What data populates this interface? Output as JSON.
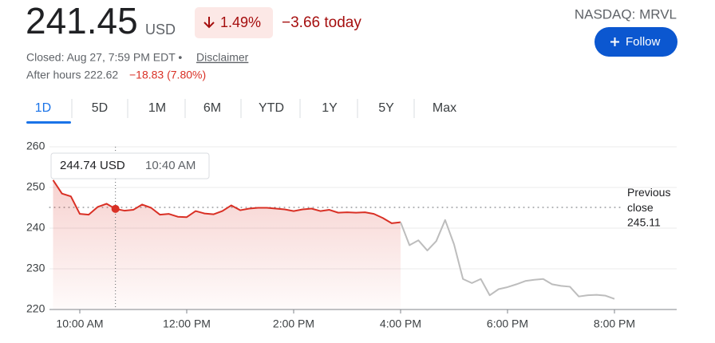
{
  "header": {
    "price": "241.45",
    "currency": "USD",
    "change_pct": "1.49%",
    "change_today": "−3.66 today",
    "exchange": "NASDAQ: MRVL",
    "follow": "Follow",
    "closed": "Closed: Aug 27, 7:59 PM EDT •",
    "disclaimer": "Disclaimer",
    "after_hours": "After hours 222.62",
    "after_hours_change": "−18.83 (7.80%)"
  },
  "tabs": [
    "1D",
    "5D",
    "1M",
    "6M",
    "YTD",
    "1Y",
    "5Y",
    "Max"
  ],
  "chart_data": {
    "type": "line",
    "x": [
      "9:30 AM",
      "9:40 AM",
      "9:50 AM",
      "10:00 AM",
      "10:10 AM",
      "10:20 AM",
      "10:30 AM",
      "10:40 AM",
      "10:50 AM",
      "11:00 AM",
      "11:10 AM",
      "11:20 AM",
      "11:30 AM",
      "11:40 AM",
      "11:50 AM",
      "12:00 PM",
      "12:10 PM",
      "12:20 PM",
      "12:30 PM",
      "12:40 PM",
      "12:50 PM",
      "1:00 PM",
      "1:10 PM",
      "1:20 PM",
      "1:30 PM",
      "1:40 PM",
      "1:50 PM",
      "2:00 PM",
      "2:10 PM",
      "2:20 PM",
      "2:30 PM",
      "2:40 PM",
      "2:50 PM",
      "3:00 PM",
      "3:10 PM",
      "3:20 PM",
      "3:30 PM",
      "3:40 PM",
      "3:50 PM",
      "4:00 PM",
      "4:10 PM",
      "4:20 PM",
      "4:30 PM",
      "4:40 PM",
      "4:50 PM",
      "5:00 PM",
      "5:10 PM",
      "5:20 PM",
      "5:30 PM",
      "5:40 PM",
      "5:50 PM",
      "6:00 PM",
      "6:10 PM",
      "6:20 PM",
      "6:30 PM",
      "6:40 PM",
      "6:50 PM",
      "7:00 PM",
      "7:10 PM",
      "7:20 PM",
      "7:30 PM",
      "7:40 PM",
      "7:50 PM",
      "8:00 PM"
    ],
    "series": [
      {
        "color": "#d93025",
        "values": [
          251.8,
          248.5,
          247.8,
          243.5,
          243.3,
          245.2,
          246,
          244.74,
          244.3,
          244.5,
          245.8,
          245,
          243.3,
          243.5,
          242.8,
          242.7,
          244.2,
          243.6,
          243.4,
          244.2,
          245.6,
          244.4,
          244.8,
          245,
          245,
          244.8,
          244.6,
          244.2,
          244.6,
          244.8,
          244.2,
          244.5,
          243.8,
          243.9,
          243.8,
          243.9,
          243.5,
          242.5,
          241.2,
          241.45,
          null,
          null,
          null,
          null,
          null,
          null,
          null,
          null,
          null,
          null,
          null,
          null,
          null,
          null,
          null,
          null,
          null,
          null,
          null,
          null,
          null,
          null,
          null,
          null
        ]
      },
      {
        "color": "#bdbdbd",
        "values": [
          null,
          null,
          null,
          null,
          null,
          null,
          null,
          null,
          null,
          null,
          null,
          null,
          null,
          null,
          null,
          null,
          null,
          null,
          null,
          null,
          null,
          null,
          null,
          null,
          null,
          null,
          null,
          null,
          null,
          null,
          null,
          null,
          null,
          null,
          null,
          null,
          null,
          null,
          null,
          241.45,
          235.8,
          237,
          234.5,
          236.8,
          242,
          236,
          227.5,
          226.5,
          227.5,
          223.5,
          225,
          225.5,
          226.2,
          227,
          227.3,
          227.5,
          226.2,
          225.8,
          225.6,
          223.2,
          223.5,
          223.6,
          223.4,
          222.62
        ]
      }
    ],
    "ylim": [
      220,
      260
    ],
    "yticks": [
      220,
      230,
      240,
      250,
      260
    ],
    "xticks": [
      "10:00 AM",
      "12:00 PM",
      "2:00 PM",
      "4:00 PM",
      "6:00 PM",
      "8:00 PM"
    ],
    "grid": true,
    "previous_close": {
      "label": "Previous close",
      "value": 245.11
    },
    "tooltip": {
      "text": "244.74 USD",
      "time": "10:40 AM"
    }
  }
}
